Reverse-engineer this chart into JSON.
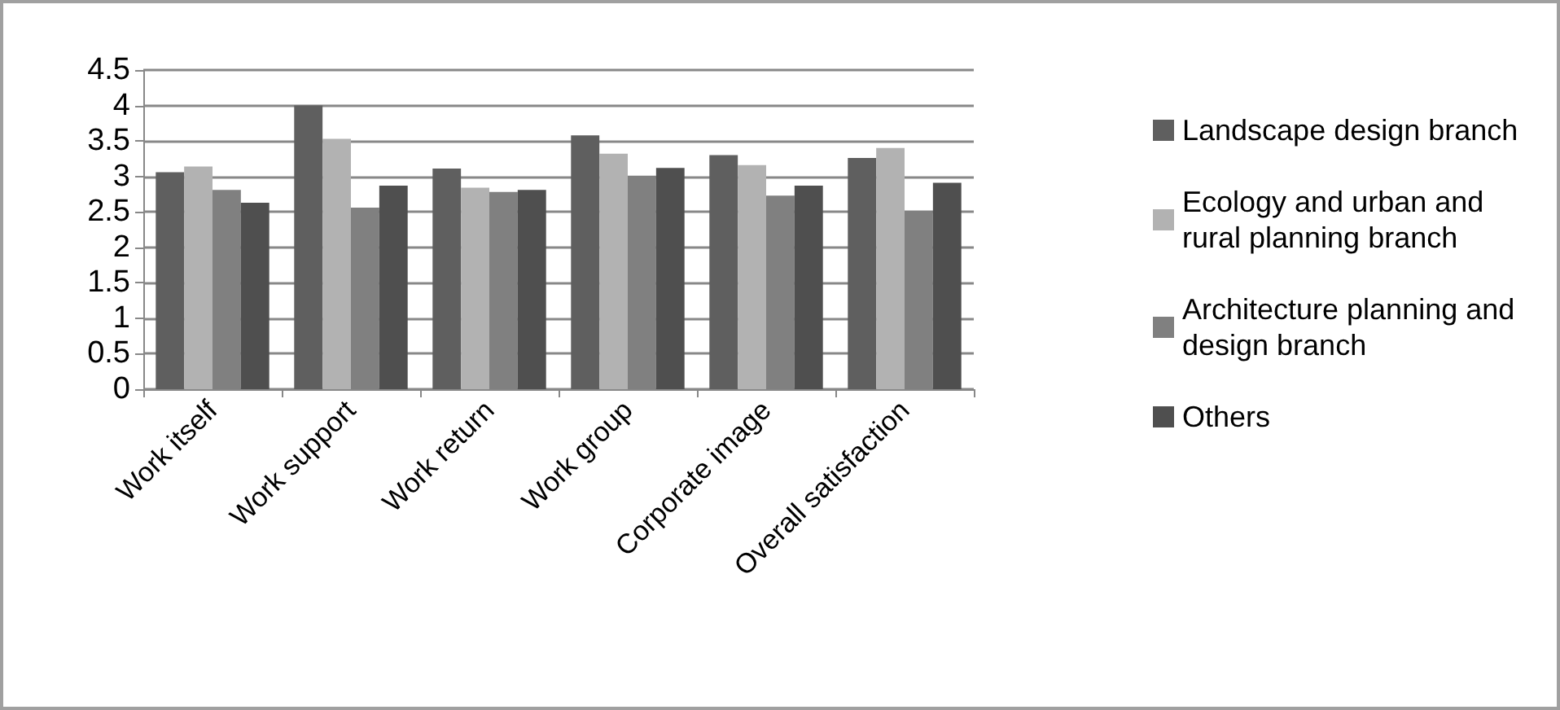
{
  "chart_data": {
    "type": "bar",
    "categories": [
      "Work itself",
      "Work support",
      "Work return",
      "Work group",
      "Corporate image",
      "Overall satisfaction"
    ],
    "series": [
      {
        "name": "Landscape design branch",
        "color": "#5f5f5f",
        "values": [
          3.06,
          4.0,
          3.11,
          3.58,
          3.3,
          3.26
        ]
      },
      {
        "name": "Ecology and urban and rural planning branch",
        "color": "#b2b2b2",
        "values": [
          3.14,
          3.53,
          2.84,
          3.32,
          3.16,
          3.4
        ]
      },
      {
        "name": "Architecture planning and design branch",
        "color": "#808080",
        "values": [
          2.81,
          2.56,
          2.78,
          3.01,
          2.73,
          2.51
        ]
      },
      {
        "name": "Others",
        "color": "#4f4f4f",
        "values": [
          2.63,
          2.87,
          2.81,
          3.12,
          2.87,
          2.91
        ]
      }
    ],
    "ylim": [
      0,
      4.5
    ],
    "yticks": [
      0,
      0.5,
      1,
      1.5,
      2,
      2.5,
      3,
      3.5,
      4,
      4.5
    ],
    "grid": "y",
    "legend": "right"
  }
}
